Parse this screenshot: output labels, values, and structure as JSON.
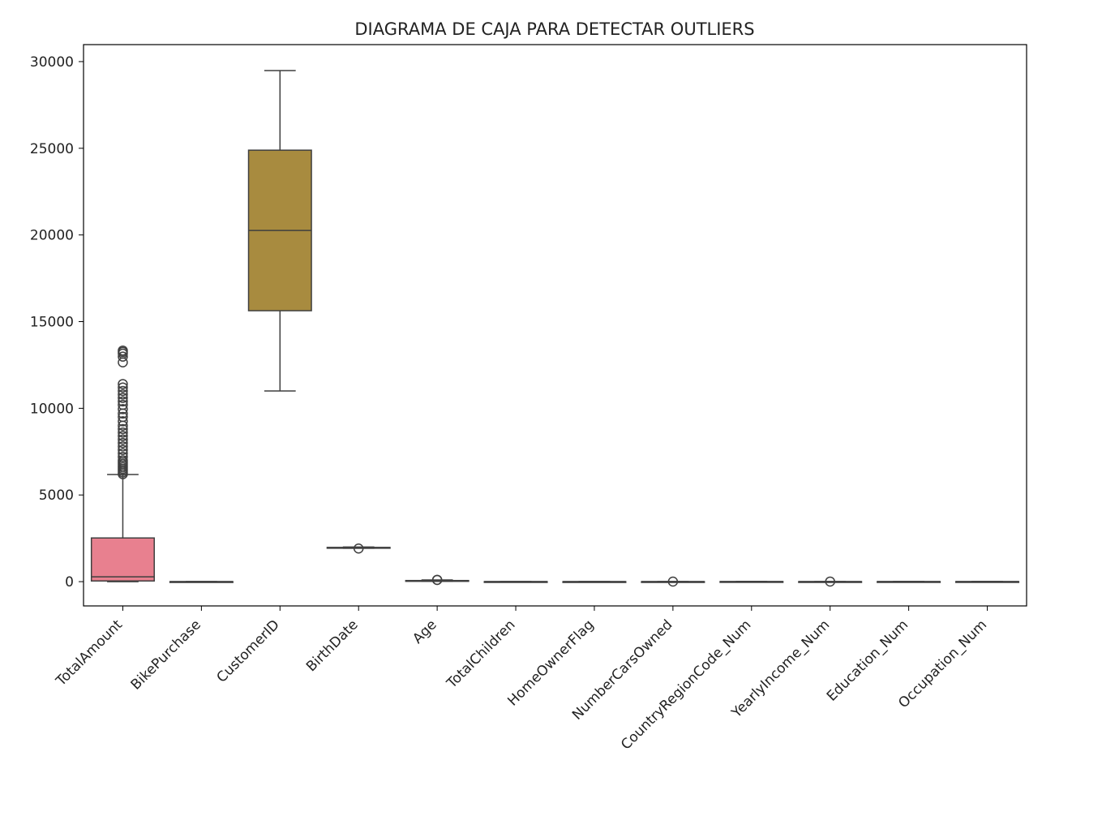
{
  "chart_data": {
    "type": "boxplot",
    "title": "DIAGRAMA DE CAJA PARA DETECTAR OUTLIERS",
    "xlabel": "",
    "ylabel": "",
    "ylim": [
      -1400,
      30980
    ],
    "yticks": [
      0,
      5000,
      10000,
      15000,
      20000,
      25000,
      30000
    ],
    "grid": false,
    "categories": [
      "TotalAmount",
      "BikePurchase",
      "CustomerID",
      "BirthDate",
      "Age",
      "TotalChildren",
      "HomeOwnerFlag",
      "NumberCarsOwned",
      "CountryRegionCode_Num",
      "YearlyIncome_Num",
      "Education_Num",
      "Occupation_Num"
    ],
    "colors": [
      "#e8808f",
      "#d08d4a",
      "#a88b3f",
      "#8f9a3f",
      "#5fa24f",
      "#4fa58a",
      "#4fa3a3",
      "#52a1bd",
      "#7a98d8",
      "#a98ad8",
      "#cf7fc9",
      "#e07fa8"
    ],
    "boxes": [
      {
        "min": 0,
        "q1": 40,
        "median": 280,
        "q3": 2520,
        "max": 6180,
        "outliers": [
          13330,
          13250,
          13150,
          12980,
          12650,
          11400,
          11200,
          11000,
          10800,
          10600,
          10400,
          10200,
          9950,
          9700,
          9500,
          9250,
          9000,
          8800,
          8600,
          8400,
          8200,
          8000,
          7800,
          7600,
          7400,
          7200,
          7000,
          6900,
          6800,
          6700,
          6600,
          6500,
          6400,
          6300,
          6200
        ]
      },
      {
        "min": 0,
        "q1": 0,
        "median": 1,
        "q3": 1,
        "max": 1,
        "outliers": []
      },
      {
        "min": 11000,
        "q1": 15630,
        "median": 20260,
        "q3": 24890,
        "max": 29480,
        "outliers": []
      },
      {
        "min": 1930,
        "q1": 1955,
        "median": 1965,
        "q3": 1975,
        "max": 2000,
        "outliers": [
          1910
        ]
      },
      {
        "min": 20,
        "q1": 45,
        "median": 55,
        "q3": 65,
        "max": 95,
        "outliers": [
          100,
          105
        ]
      },
      {
        "min": 0,
        "q1": 0,
        "median": 2,
        "q3": 3,
        "max": 5,
        "outliers": []
      },
      {
        "min": 0,
        "q1": 0,
        "median": 1,
        "q3": 1,
        "max": 1,
        "outliers": []
      },
      {
        "min": 0,
        "q1": 1,
        "median": 2,
        "q3": 2,
        "max": 3,
        "outliers": [
          4
        ]
      },
      {
        "min": 1,
        "q1": 2,
        "median": 4,
        "q3": 6,
        "max": 10,
        "outliers": []
      },
      {
        "min": 0,
        "q1": 1,
        "median": 2,
        "q3": 3,
        "max": 4,
        "outliers": [
          5
        ]
      },
      {
        "min": 1,
        "q1": 2,
        "median": 3,
        "q3": 4,
        "max": 5,
        "outliers": []
      },
      {
        "min": 1,
        "q1": 2,
        "median": 3,
        "q3": 4,
        "max": 5,
        "outliers": []
      }
    ]
  }
}
